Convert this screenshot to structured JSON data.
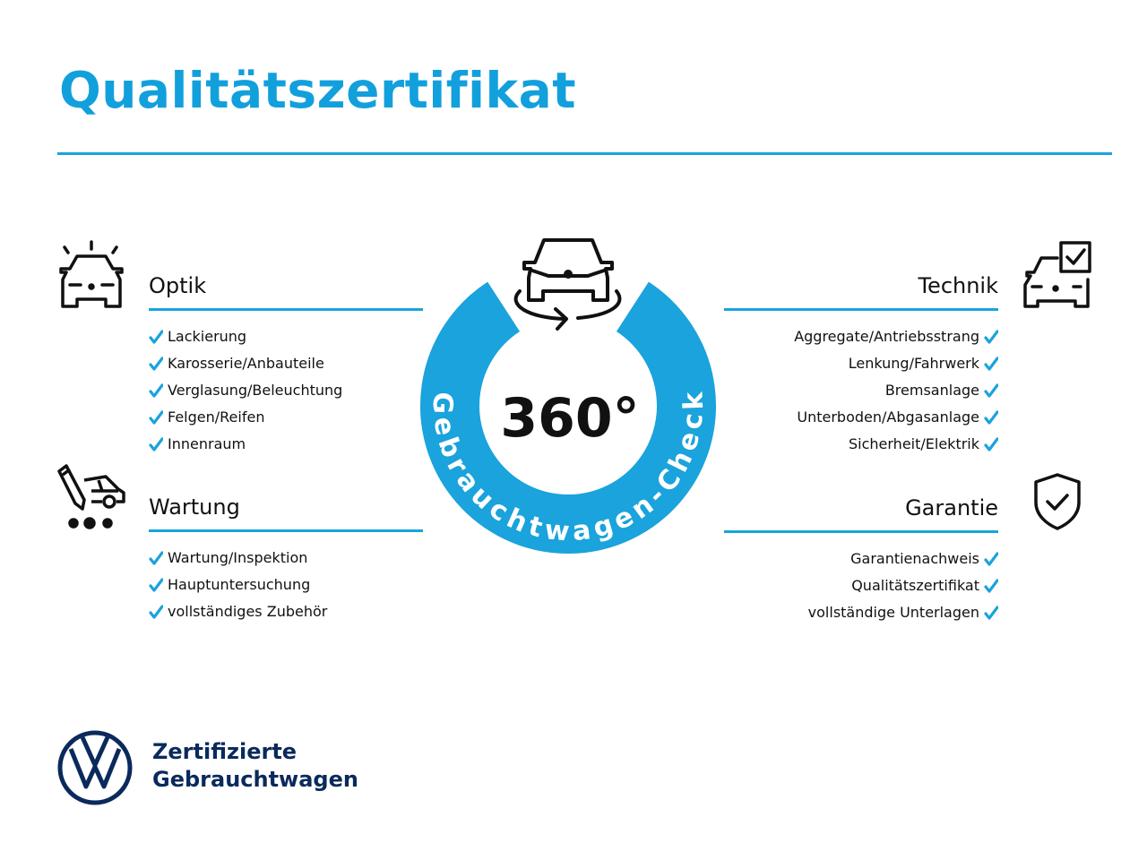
{
  "title": "Qualitätszertifikat",
  "badge": {
    "number": "360°",
    "arc_text": "Gebrauchtwagen-Check"
  },
  "sections": {
    "optik": {
      "heading": "Optik",
      "icon": "car-lights-icon",
      "items": [
        "Lackierung",
        "Karosserie/Anbauteile",
        "Verglasung/Beleuchtung",
        "Felgen/Reifen",
        "Innenraum"
      ]
    },
    "wartung": {
      "heading": "Wartung",
      "icon": "service-car-icon",
      "items": [
        "Wartung/Inspektion",
        "Hauptuntersuchung",
        "vollständiges Zubehör"
      ]
    },
    "technik": {
      "heading": "Technik",
      "icon": "car-checklist-icon",
      "items": [
        "Aggregate/Antriebsstrang",
        "Lenkung/Fahrwerk",
        "Bremsanlage",
        "Unterboden/Abgasanlage",
        "Sicherheit/Elektrik"
      ]
    },
    "garantie": {
      "heading": "Garantie",
      "icon": "shield-check-icon",
      "items": [
        "Garantienachweis",
        "Qualitätszertifikat",
        "vollständige Unterlagen"
      ]
    }
  },
  "brand": {
    "line1": "Zertifizierte",
    "line2": "Gebrauchtwagen"
  },
  "colors": {
    "accent": "#1aa3dc",
    "brand_navy": "#0a2a5c",
    "text": "#111111"
  }
}
